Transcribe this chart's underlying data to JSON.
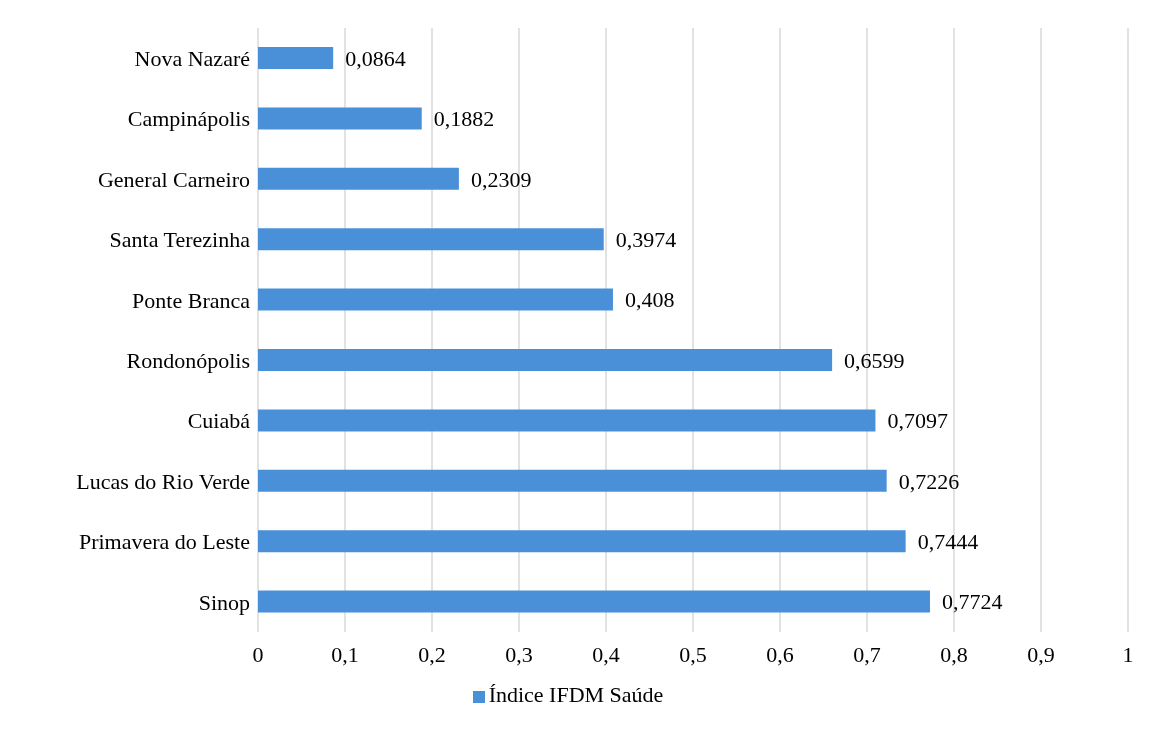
{
  "chart_data": {
    "type": "bar",
    "orientation": "horizontal",
    "categories": [
      "Nova Nazaré",
      "Campinápolis",
      "General Carneiro",
      "Santa Terezinha",
      "Ponte Branca",
      "Rondonópolis",
      "Cuiabá",
      "Lucas do Rio Verde",
      "Primavera do Leste",
      "Sinop"
    ],
    "series": [
      {
        "name": "Índice IFDM Saúde",
        "color": "#4a90d9",
        "values": [
          0.0864,
          0.1882,
          0.2309,
          0.3974,
          0.408,
          0.6599,
          0.7097,
          0.7226,
          0.7444,
          0.7724
        ],
        "value_labels": [
          "0,0864",
          "0,1882",
          "0,2309",
          "0,3974",
          "0,408",
          "0,6599",
          "0,7097",
          "0,7226",
          "0,7444",
          "0,7724"
        ]
      }
    ],
    "xlim": [
      0,
      1
    ],
    "xticks": [
      0,
      {
        "value": 0.1,
        "label": "0,1"
      },
      {
        "value": 0.2,
        "label": "0,2"
      },
      {
        "value": 0.3,
        "label": "0,3"
      },
      {
        "value": 0.4,
        "label": "0,4"
      },
      {
        "value": 0.5,
        "label": "0,5"
      },
      {
        "value": 0.6,
        "label": "0,6"
      },
      {
        "value": 0.7,
        "label": "0,7"
      },
      {
        "value": 0.8,
        "label": "0,8"
      },
      {
        "value": 0.9,
        "label": "0,9"
      },
      1
    ],
    "grid": "x",
    "legend": "bottom"
  }
}
